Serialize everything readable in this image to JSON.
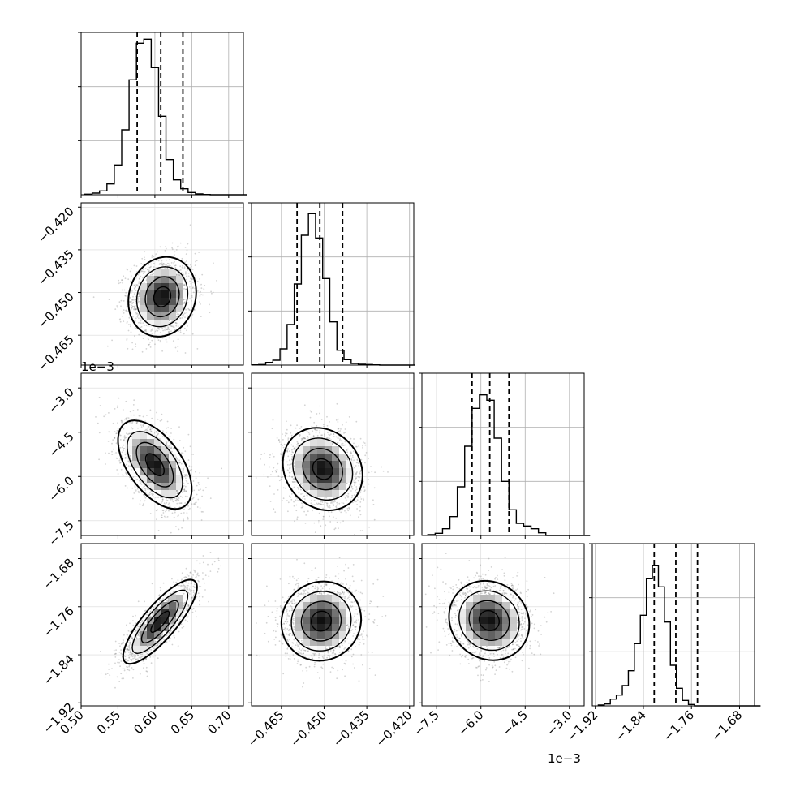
{
  "chart_data": {
    "type": "corner",
    "parameters": [
      {
        "range": [
          0.5,
          0.72
        ],
        "ticks": [
          0.5,
          0.55,
          0.6,
          0.65,
          0.7
        ],
        "tick_labels": [
          "0.50",
          "0.55",
          "0.60",
          "0.65",
          "0.70"
        ],
        "quantiles": [
          0.576,
          0.608,
          0.638
        ],
        "offset_text": "",
        "hist": {
          "bin_start": 0.505,
          "bin_width": 0.01,
          "counts": [
            2,
            6,
            14,
            40,
            110,
            240,
            425,
            560,
            575,
            470,
            290,
            130,
            55,
            22,
            8,
            3,
            1,
            0,
            0,
            0,
            0,
            0
          ],
          "max": 600
        }
      },
      {
        "range": [
          -0.4755,
          -0.4185
        ],
        "ticks": [
          -0.465,
          -0.45,
          -0.435,
          -0.42
        ],
        "tick_labels": [
          "−0.465",
          "−0.450",
          "−0.435",
          "−0.420"
        ],
        "quantiles": [
          -0.4595,
          -0.4515,
          -0.4435
        ],
        "offset_text": "",
        "hist": {
          "bin_start": -0.4755,
          "bin_width": 0.0025,
          "counts": [
            1,
            2,
            10,
            18,
            60,
            150,
            300,
            480,
            560,
            470,
            320,
            160,
            55,
            20,
            6,
            3,
            2,
            1,
            0,
            0,
            0,
            0,
            0
          ],
          "max": 600
        }
      },
      {
        "range": [
          -8.0,
          -2.5
        ],
        "ticks": [
          -7.5,
          -6.0,
          -4.5,
          -3.0
        ],
        "tick_labels": [
          "−7.5",
          "−6.0",
          "−4.5",
          "−3.0"
        ],
        "quantiles": [
          -6.3,
          -5.7,
          -5.05
        ],
        "offset_text": "1e−3",
        "hist": {
          "bin_start": -7.8,
          "bin_width": 0.25,
          "counts": [
            3,
            8,
            25,
            70,
            180,
            330,
            470,
            520,
            500,
            360,
            200,
            95,
            45,
            35,
            25,
            10,
            0,
            0,
            0,
            0,
            0,
            0
          ],
          "max": 600
        }
      },
      {
        "range": [
          -1.925,
          -1.655
        ],
        "ticks": [
          -1.92,
          -1.84,
          -1.76,
          -1.68
        ],
        "tick_labels": [
          "−1.92",
          "−1.84",
          "−1.76",
          "−1.68"
        ],
        "quantiles": [
          -1.822,
          -1.786,
          -1.75
        ],
        "offset_text": "",
        "hist": {
          "bin_start": -1.915,
          "bin_width": 0.01,
          "counts": [
            3,
            7,
            25,
            40,
            75,
            130,
            230,
            335,
            470,
            520,
            440,
            310,
            150,
            65,
            20,
            5,
            0,
            0,
            0,
            0,
            0,
            0,
            0,
            0,
            0,
            0,
            0
          ],
          "max": 600
        }
      }
    ],
    "pairs": [
      {
        "x": 0,
        "y": 1,
        "center": [
          0.61,
          -0.4515
        ],
        "sd": [
          0.023,
          0.007
        ],
        "rho": 0.12
      },
      {
        "x": 0,
        "y": 2,
        "center": [
          0.6,
          -5.6
        ],
        "sd": [
          0.025,
          0.75
        ],
        "rho": -0.55
      },
      {
        "x": 1,
        "y": 2,
        "center": [
          -0.4505,
          -5.75
        ],
        "sd": [
          0.007,
          0.7
        ],
        "rho": -0.15
      },
      {
        "x": 0,
        "y": 3,
        "center": [
          0.607,
          -1.785
        ],
        "sd": [
          0.025,
          0.035
        ],
        "rho": 0.82
      },
      {
        "x": 1,
        "y": 3,
        "center": [
          -0.451,
          -1.784
        ],
        "sd": [
          0.007,
          0.033
        ],
        "rho": 0.05
      },
      {
        "x": 2,
        "y": 3,
        "center": [
          -5.72,
          -1.783
        ],
        "sd": [
          0.68,
          0.033
        ],
        "rho": -0.1
      }
    ],
    "contour_levels_sigma": [
      0.5,
      1.0,
      1.5,
      2.0
    ],
    "grid": true,
    "colors": {
      "hist": "#000000",
      "contour": "#000000",
      "scatter": "#808080",
      "grid": "#b0b0b0"
    }
  }
}
